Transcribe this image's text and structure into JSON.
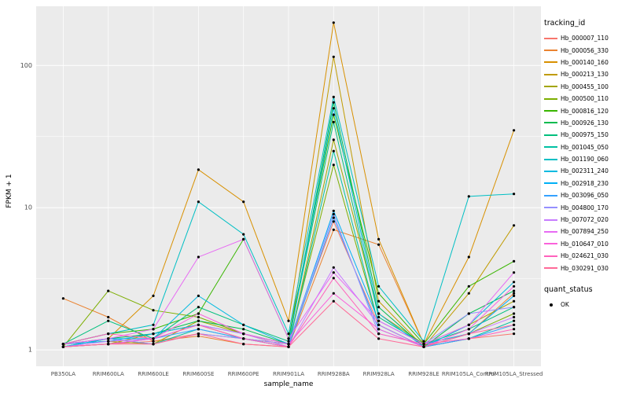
{
  "chart_data": {
    "type": "line",
    "xlabel": "sample_name",
    "ylabel": "FPKM + 1",
    "yscale": "log10",
    "yticks": [
      1,
      10,
      100
    ],
    "minor_yticks": [
      3.1623,
      31.623
    ],
    "legend_title": "tracking_id",
    "point_legend": {
      "title": "quant_status",
      "items": [
        "OK"
      ]
    },
    "panel_bg": "#EBEBEB",
    "grid_color": "#FFFFFF",
    "tick_label_color": "#4D4D4D",
    "point_color": "#000000",
    "x_categories": [
      "PB350LA",
      "RRIM600LA",
      "RRIM600LE",
      "RRIM600SE",
      "RRIM600PE",
      "RRIM901LA",
      "RRIM928BA",
      "RRIM928LA",
      "RRIM928LE",
      "RRIM105LA_Control",
      "RRIM105LA_Stressed"
    ],
    "series": [
      {
        "name": "Hb_000007_110",
        "color": "#F8766D",
        "values": [
          1.05,
          1.1,
          1.15,
          1.3,
          1.2,
          1.1,
          8.0,
          1.5,
          1.05,
          1.2,
          1.3
        ]
      },
      {
        "name": "Hb_000056_330",
        "color": "#EA8331",
        "values": [
          2.3,
          1.7,
          1.15,
          1.25,
          1.1,
          1.05,
          7.0,
          5.5,
          1.1,
          1.3,
          2.5
        ]
      },
      {
        "name": "Hb_000140_160",
        "color": "#D89000",
        "values": [
          1.1,
          1.2,
          2.4,
          18.5,
          11.0,
          1.6,
          200.0,
          6.0,
          1.1,
          4.5,
          35.0
        ]
      },
      {
        "name": "Hb_000213_130",
        "color": "#C09B00",
        "values": [
          1.05,
          1.1,
          1.3,
          1.5,
          1.2,
          1.1,
          115.0,
          2.2,
          1.05,
          2.5,
          7.5
        ]
      },
      {
        "name": "Hb_000455_100",
        "color": "#A3A500",
        "values": [
          1.1,
          1.15,
          1.1,
          1.6,
          1.3,
          1.05,
          30.0,
          1.8,
          1.1,
          1.5,
          2.2
        ]
      },
      {
        "name": "Hb_000500_110",
        "color": "#7CAE00",
        "values": [
          1.05,
          2.6,
          1.9,
          1.7,
          1.3,
          1.1,
          20.0,
          1.5,
          1.05,
          1.3,
          1.8
        ]
      },
      {
        "name": "Hb_000816_120",
        "color": "#39B600",
        "values": [
          1.1,
          1.3,
          1.4,
          1.8,
          6.0,
          1.2,
          45.0,
          2.5,
          1.1,
          2.8,
          4.2
        ]
      },
      {
        "name": "Hb_000926_130",
        "color": "#00BB4E",
        "values": [
          1.05,
          1.2,
          1.3,
          1.6,
          1.4,
          1.1,
          55.0,
          2.0,
          1.05,
          1.8,
          2.6
        ]
      },
      {
        "name": "Hb_000975_150",
        "color": "#00BF7D",
        "values": [
          1.1,
          1.6,
          1.2,
          2.0,
          1.5,
          1.15,
          40.0,
          1.7,
          1.1,
          1.4,
          2.0
        ]
      },
      {
        "name": "Hb_001045_050",
        "color": "#00C1A3",
        "values": [
          1.05,
          1.2,
          1.1,
          1.4,
          1.2,
          1.05,
          25.0,
          1.5,
          1.05,
          1.2,
          1.6
        ]
      },
      {
        "name": "Hb_001190_060",
        "color": "#00BFC4",
        "values": [
          1.1,
          1.3,
          1.5,
          11.0,
          6.5,
          1.3,
          60.0,
          2.8,
          1.15,
          12.0,
          12.5
        ]
      },
      {
        "name": "Hb_002311_240",
        "color": "#00BAE0",
        "values": [
          1.05,
          1.2,
          1.2,
          2.4,
          1.5,
          1.1,
          50.0,
          1.8,
          1.05,
          1.5,
          3.0
        ]
      },
      {
        "name": "Hb_002918_230",
        "color": "#00B0F6",
        "values": [
          1.1,
          1.15,
          1.3,
          1.5,
          1.3,
          1.1,
          9.5,
          1.6,
          1.1,
          1.3,
          2.4
        ]
      },
      {
        "name": "Hb_003096_050",
        "color": "#35A2FF",
        "values": [
          1.05,
          1.1,
          1.2,
          1.4,
          1.2,
          1.05,
          8.5,
          1.4,
          1.05,
          1.2,
          1.5
        ]
      },
      {
        "name": "Hb_004800_170",
        "color": "#9590FF",
        "values": [
          1.1,
          1.2,
          1.1,
          1.3,
          1.2,
          1.1,
          9.0,
          1.3,
          1.1,
          1.8,
          2.0
        ]
      },
      {
        "name": "Hb_007072_020",
        "color": "#C77CFF",
        "values": [
          1.05,
          1.15,
          1.2,
          1.5,
          1.3,
          1.05,
          3.8,
          1.5,
          1.05,
          1.3,
          1.7
        ]
      },
      {
        "name": "Hb_007894_250",
        "color": "#E76BF3",
        "values": [
          1.1,
          1.2,
          1.4,
          4.5,
          6.0,
          1.2,
          3.5,
          1.6,
          1.1,
          1.5,
          3.5
        ]
      },
      {
        "name": "Hb_010647_010",
        "color": "#FA62DB",
        "values": [
          1.05,
          1.1,
          1.2,
          1.8,
          1.3,
          1.1,
          2.5,
          1.4,
          1.05,
          1.4,
          2.8
        ]
      },
      {
        "name": "Hb_024621_030",
        "color": "#FF62BC",
        "values": [
          1.1,
          1.3,
          1.2,
          1.5,
          1.2,
          1.05,
          3.2,
          1.3,
          1.1,
          1.2,
          1.4
        ]
      },
      {
        "name": "Hb_030291_030",
        "color": "#FF6A98",
        "values": [
          1.05,
          1.1,
          1.1,
          1.3,
          1.1,
          1.05,
          2.2,
          1.2,
          1.05,
          1.3,
          1.5
        ]
      }
    ]
  }
}
